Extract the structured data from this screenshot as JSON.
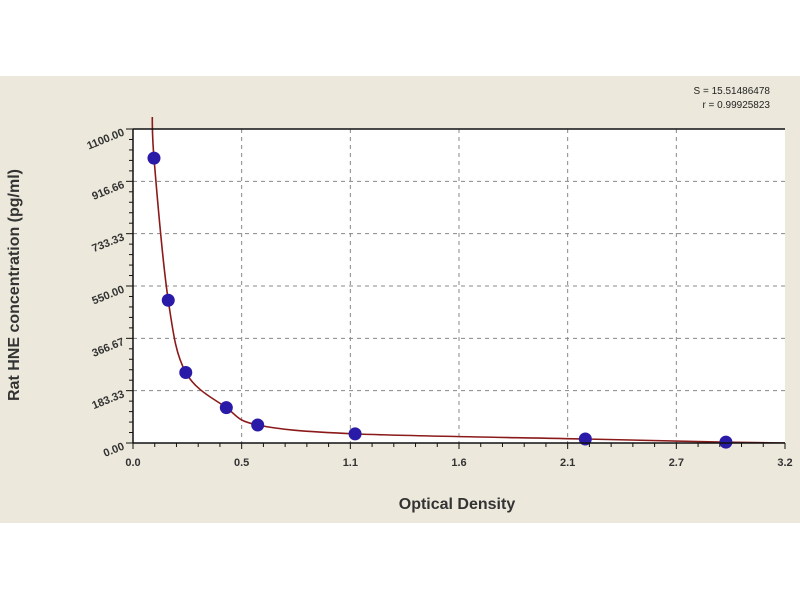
{
  "chart_data": {
    "type": "scatter",
    "title": "",
    "xlabel": "Optical Density",
    "ylabel": "Rat HNE concentration (pg/ml)",
    "xlim": [
      0,
      3.2
    ],
    "ylim": [
      0,
      1100
    ],
    "x_ticks": [
      0,
      0.5333,
      1.0667,
      1.6,
      2.1333,
      2.6667,
      3.2
    ],
    "x_tick_labels": [
      "0.0",
      "0.5",
      "1.1",
      "1.6",
      "2.1",
      "2.7",
      "3.2"
    ],
    "y_ticks": [
      0,
      183.33,
      366.67,
      550,
      733.33,
      916.66,
      1100
    ],
    "y_tick_labels": [
      "0.00",
      "183.33",
      "366.67",
      "550.00",
      "733.33",
      "916.66",
      "1100.00"
    ],
    "grid": true,
    "annotations": [
      "S = 15.51486478",
      "r = 0.99925823"
    ],
    "points": [
      {
        "x": 0.103,
        "y": 998
      },
      {
        "x": 0.173,
        "y": 500
      },
      {
        "x": 0.259,
        "y": 247
      },
      {
        "x": 0.458,
        "y": 124
      },
      {
        "x": 0.612,
        "y": 63
      },
      {
        "x": 1.09,
        "y": 32
      },
      {
        "x": 2.22,
        "y": 14
      },
      {
        "x": 2.91,
        "y": 3
      }
    ],
    "colors": {
      "points": "#2a1aa8",
      "curve": "#8b1a1a",
      "background": "#ece9dc",
      "plot": "#ffffff",
      "grid": "#888888"
    }
  }
}
